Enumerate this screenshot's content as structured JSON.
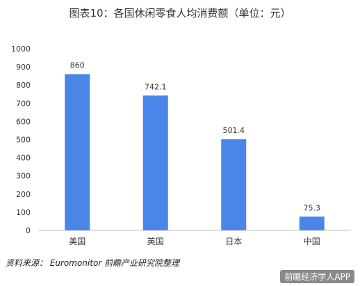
{
  "chart_data": {
    "type": "bar",
    "title": "图表10：各国休闲零食人均消费额（单位：元）",
    "categories": [
      "美国",
      "英国",
      "日本",
      "中国"
    ],
    "values": [
      860,
      742.1,
      501.4,
      75.3
    ],
    "value_labels": [
      "860",
      "742.1",
      "501.4",
      "75.3"
    ],
    "yticks": [
      "0",
      "100",
      "200",
      "300",
      "400",
      "500",
      "600",
      "700",
      "800",
      "900",
      "1000"
    ],
    "ylim": [
      0,
      1000
    ],
    "grid": false,
    "bar_color": "#4a86e8"
  },
  "footer": {
    "source": "资料来源： Euromonitor  前瞻产业研究院整理",
    "app_watermark": "前瞻经济学人APP"
  }
}
